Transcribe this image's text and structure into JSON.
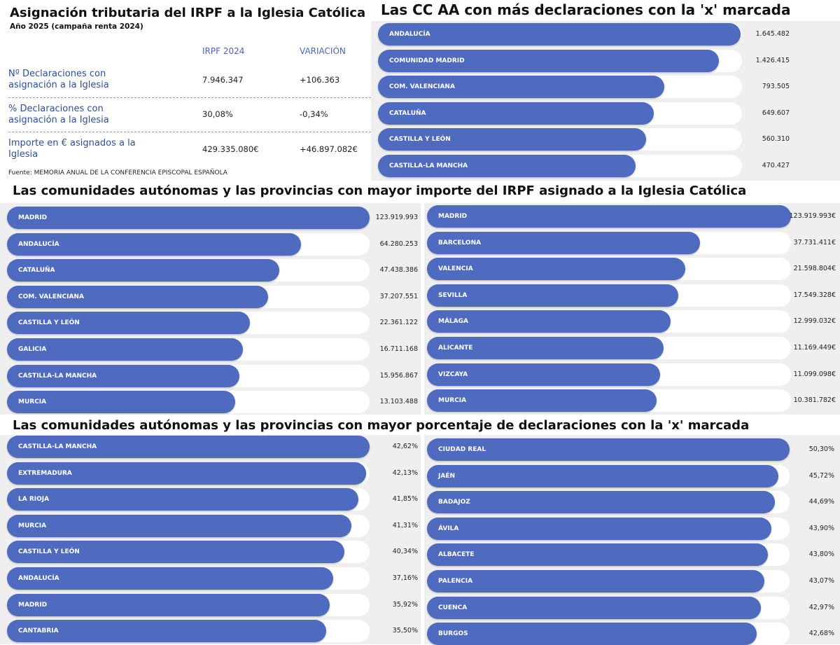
{
  "table": {
    "title": "Asignación tributaria del IRPF a la Iglesia Católica",
    "subtitle": "Año 2025 (campaña renta 2024)",
    "col_irpf": "IRPF 2024",
    "col_var": "VARIACIÓN",
    "rows": [
      {
        "label": "Nº Declaraciones con asignación a la Iglesia",
        "irpf": "7.946.347",
        "var": "+106.363"
      },
      {
        "label": "% Declaraciones con asignación a la Iglesia",
        "irpf": "30,08%",
        "var": "-0,34%"
      },
      {
        "label": "Importe en € asignados a la Iglesia",
        "irpf": "429.335.080€",
        "var": "+46.897.082€"
      }
    ],
    "source": "Fuente: MEMORIA ANUAL DE LA CONFERENCIA EPISCOPAL ESPAÑOLA"
  },
  "section_titles": {
    "importe": "Las comunidades autónomas y las provincias con mayor importe del IRPF asignado a la Iglesia Católica",
    "porcentaje": "Las comunidades autónomas y las provincias con mayor porcentaje de declaraciones con la 'x' marcada"
  },
  "colors": {
    "bar": "#4e6bbf",
    "panel": "#efefef",
    "track": "#ffffff"
  },
  "chart_data": [
    {
      "type": "bar",
      "title": "Las CC AA con más declaraciones con la 'x' marcada",
      "categories": [
        "ANDALUCÍA",
        "COMUNIDAD MADRID",
        "COM. VALENCIANA",
        "CATALUÑA",
        "CASTILLA Y LEÓN",
        "CASTILLA-LA MANCHA"
      ],
      "values": [
        1645482,
        1426415,
        793505,
        649607,
        560310,
        470427
      ],
      "value_labels": [
        "1.645.482",
        "1.426.415",
        "793.505",
        "649.607",
        "560.310",
        "470.427"
      ],
      "fill_fraction": [
        1.0,
        0.94,
        0.79,
        0.76,
        0.74,
        0.71
      ]
    },
    {
      "type": "bar",
      "title": "",
      "categories": [
        "MADRID",
        "ANDALUCÍA",
        "CATALUÑA",
        "COM. VALENCIANA",
        "CASTILLA Y LEÓN",
        "GALICIA",
        "CASTILLA-LA MANCHA",
        "MURCIA"
      ],
      "values": [
        123919993,
        64280253,
        47438386,
        37207551,
        22361122,
        16711168,
        15956867,
        13103488
      ],
      "value_labels": [
        "123.919.993",
        "64.280.253",
        "47.438.386",
        "37.207.551",
        "22.361.122",
        "16.711.168",
        "15.956.867",
        "13.103.488"
      ],
      "fill_fraction": [
        1.0,
        0.81,
        0.75,
        0.72,
        0.67,
        0.65,
        0.64,
        0.63
      ]
    },
    {
      "type": "bar",
      "title": "",
      "categories": [
        "MADRID",
        "BARCELONA",
        "VALENCIA",
        "SEVILLA",
        "MÁLAGA",
        "ALICANTE",
        "VIZCAYA",
        "MURCIA"
      ],
      "values": [
        123919993,
        37731411,
        21598804,
        17549328,
        12999032,
        11169449,
        11099098,
        10381782
      ],
      "value_labels": [
        "123.919.993€",
        "37.731.411€",
        "21.598.804€",
        "17.549.328€",
        "12.999.032€",
        "11.169.449€",
        "11.099.098€",
        "10.381.782€"
      ],
      "fill_fraction": [
        1.0,
        0.75,
        0.71,
        0.69,
        0.67,
        0.65,
        0.64,
        0.63
      ]
    },
    {
      "type": "bar",
      "title": "",
      "categories": [
        "CASTILLA-LA MANCHA",
        "EXTREMADURA",
        "LA RIOJA",
        "MURCIA",
        "CASTILLA Y LEÓN",
        "ANDALUCÍA",
        "MADRID",
        "CANTABRIA"
      ],
      "values": [
        42.62,
        42.13,
        41.85,
        41.31,
        40.34,
        37.16,
        35.92,
        35.5
      ],
      "value_labels": [
        "42,62%",
        "42,13%",
        "41,85%",
        "41,31%",
        "40,34%",
        "37,16%",
        "35,92%",
        "35,50%"
      ],
      "fill_fraction": [
        1.0,
        0.99,
        0.97,
        0.95,
        0.93,
        0.9,
        0.89,
        0.88
      ]
    },
    {
      "type": "bar",
      "title": "",
      "categories": [
        "CIUDAD REAL",
        "JAÉN",
        "BADAJOZ",
        "ÁVILA",
        "ALBACETE",
        "PALENCIA",
        "CUENCA",
        "BURGOS"
      ],
      "values": [
        50.3,
        45.72,
        44.69,
        43.9,
        43.8,
        43.07,
        42.97,
        42.68
      ],
      "value_labels": [
        "50,30%",
        "45,72%",
        "44,69%",
        "43,90%",
        "43,80%",
        "43,07%",
        "42,97%",
        "42,68%"
      ],
      "fill_fraction": [
        1.0,
        0.97,
        0.96,
        0.95,
        0.94,
        0.93,
        0.92,
        0.91
      ]
    }
  ]
}
